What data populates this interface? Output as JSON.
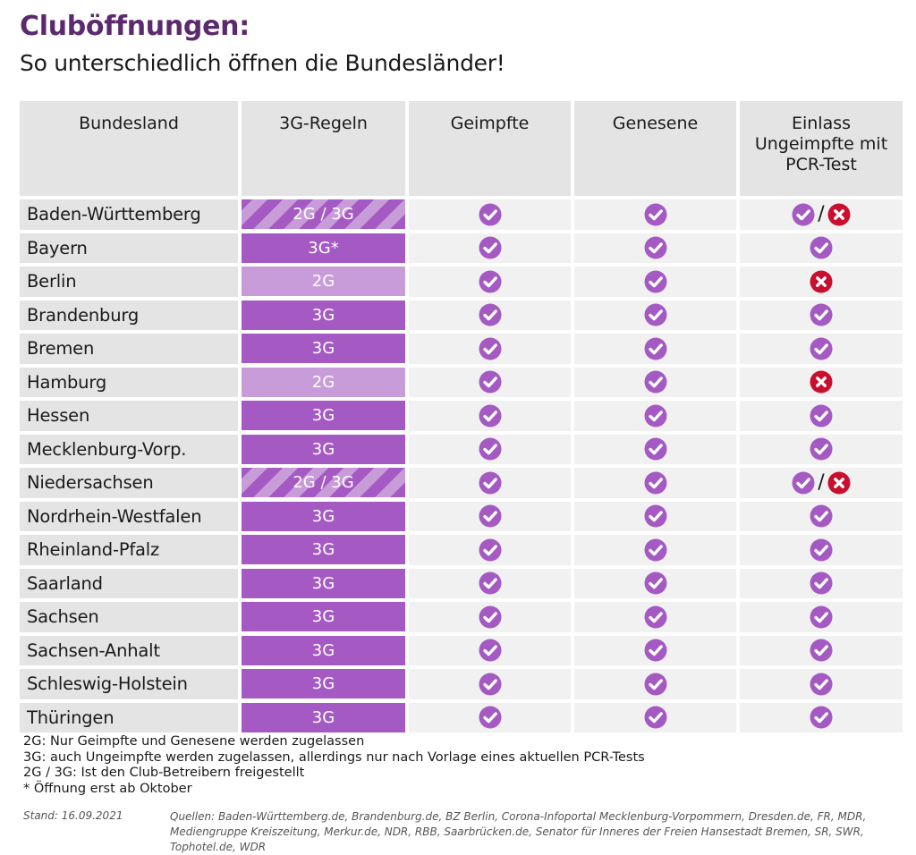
{
  "header": {
    "title": "Cluböffnungen:",
    "subtitle": "So unterschiedlich öffnen die Bundesländer!"
  },
  "colors": {
    "rule_3g": "#a45ac2",
    "rule_2g": "#c89bd9",
    "check": "#a45ac2",
    "cross": "#c8102e",
    "title": "#5b2a6e"
  },
  "chart_data": {
    "type": "table",
    "columns": [
      "Bundesland",
      "3G-Regeln",
      "Geimpfte",
      "Genesene",
      "Einlass Ungeimpfte mit PCR-Test"
    ],
    "rows": [
      {
        "state": "Baden-Württemberg",
        "rule": "2G / 3G",
        "style": "mixed",
        "geimpfte": "yes",
        "genesene": "yes",
        "pcr": "mixed"
      },
      {
        "state": "Bayern",
        "rule": "3G*",
        "style": "3g",
        "geimpfte": "yes",
        "genesene": "yes",
        "pcr": "yes"
      },
      {
        "state": "Berlin",
        "rule": "2G",
        "style": "2g",
        "geimpfte": "yes",
        "genesene": "yes",
        "pcr": "no"
      },
      {
        "state": "Brandenburg",
        "rule": "3G",
        "style": "3g",
        "geimpfte": "yes",
        "genesene": "yes",
        "pcr": "yes"
      },
      {
        "state": "Bremen",
        "rule": "3G",
        "style": "3g",
        "geimpfte": "yes",
        "genesene": "yes",
        "pcr": "yes"
      },
      {
        "state": "Hamburg",
        "rule": "2G",
        "style": "2g",
        "geimpfte": "yes",
        "genesene": "yes",
        "pcr": "no"
      },
      {
        "state": "Hessen",
        "rule": "3G",
        "style": "3g",
        "geimpfte": "yes",
        "genesene": "yes",
        "pcr": "yes"
      },
      {
        "state": "Mecklenburg-Vorp.",
        "rule": "3G",
        "style": "3g",
        "geimpfte": "yes",
        "genesene": "yes",
        "pcr": "yes"
      },
      {
        "state": "Niedersachsen",
        "rule": "2G / 3G",
        "style": "mixed",
        "geimpfte": "yes",
        "genesene": "yes",
        "pcr": "mixed"
      },
      {
        "state": "Nordrhein-Westfalen",
        "rule": "3G",
        "style": "3g",
        "geimpfte": "yes",
        "genesene": "yes",
        "pcr": "yes"
      },
      {
        "state": "Rheinland-Pfalz",
        "rule": "3G",
        "style": "3g",
        "geimpfte": "yes",
        "genesene": "yes",
        "pcr": "yes"
      },
      {
        "state": "Saarland",
        "rule": "3G",
        "style": "3g",
        "geimpfte": "yes",
        "genesene": "yes",
        "pcr": "yes"
      },
      {
        "state": "Sachsen",
        "rule": "3G",
        "style": "3g",
        "geimpfte": "yes",
        "genesene": "yes",
        "pcr": "yes"
      },
      {
        "state": "Sachsen-Anhalt",
        "rule": "3G",
        "style": "3g",
        "geimpfte": "yes",
        "genesene": "yes",
        "pcr": "yes"
      },
      {
        "state": "Schleswig-Holstein",
        "rule": "3G",
        "style": "3g",
        "geimpfte": "yes",
        "genesene": "yes",
        "pcr": "yes"
      },
      {
        "state": "Thüringen",
        "rule": "3G",
        "style": "3g",
        "geimpfte": "yes",
        "genesene": "yes",
        "pcr": "yes"
      }
    ],
    "icons": {
      "yes": "check-circle-icon",
      "no": "cross-circle-icon",
      "mixed": "check-or-cross-icon"
    },
    "mixed_separator": "/"
  },
  "legend": [
    "2G: Nur Geimpfte und Genesene werden zugelassen",
    "3G: auch Ungeimpfte werden zugelassen, allerdings nur nach Vorlage eines aktuellen PCR-Tests",
    "2G / 3G: Ist den Club-Betreibern freigestellt",
    "* Öffnung erst ab Oktober"
  ],
  "footer": {
    "stand": "Stand: 16.09.2021",
    "sources": "Quellen: Baden-Württemberg.de, Brandenburg.de, BZ Berlin, Corona-Infoportal Mecklenburg-Vorpommern, Dresden.de, FR, MDR, Mediengruppe Kreiszeitung, Merkur.de, NDR, RBB, Saarbrücken.de, Senator für Inneres der Freien Hansestadt Bremen, SR, SWR, Tophotel.de, WDR"
  }
}
